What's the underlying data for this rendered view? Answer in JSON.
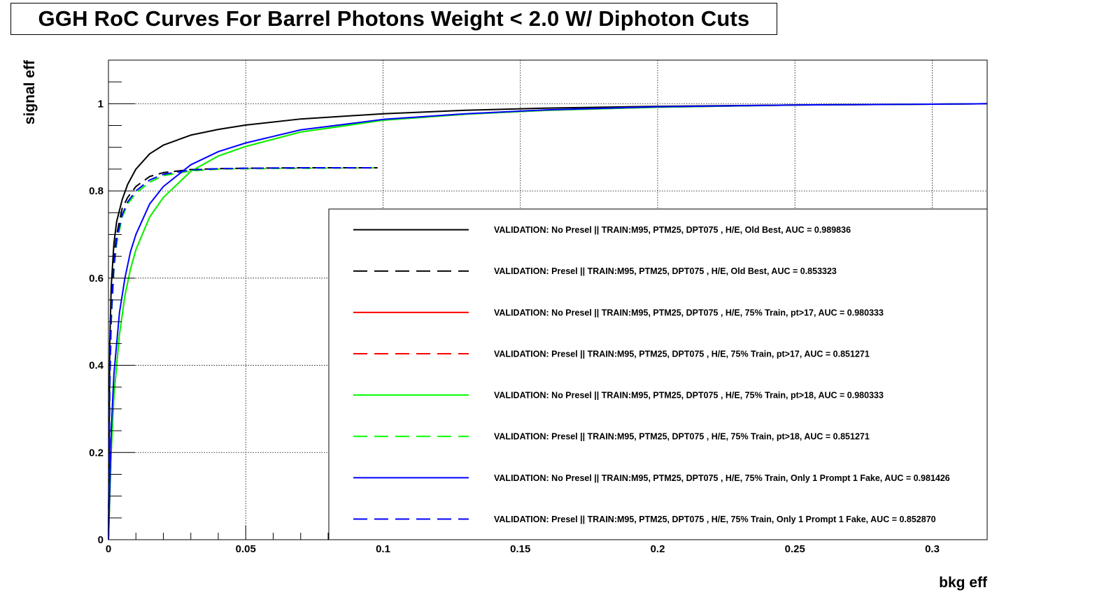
{
  "chart_data": {
    "type": "line",
    "title": "GGH RoC Curves For Barrel Photons Weight < 2.0 W/ Diphoton Cuts",
    "xlabel": "bkg eff",
    "ylabel": "signal eff",
    "xlim": [
      0,
      0.32
    ],
    "ylim": [
      0,
      1.1
    ],
    "grid": true,
    "legend_position": "bottom-right",
    "x_ticks": [
      {
        "value": 0,
        "label": "0"
      },
      {
        "value": 0.05,
        "label": "0.05"
      },
      {
        "value": 0.1,
        "label": "0.1"
      },
      {
        "value": 0.15,
        "label": "0.15"
      },
      {
        "value": 0.2,
        "label": "0.2"
      },
      {
        "value": 0.25,
        "label": "0.25"
      },
      {
        "value": 0.3,
        "label": "0.3"
      }
    ],
    "y_ticks": [
      {
        "value": 0,
        "label": "0"
      },
      {
        "value": 0.2,
        "label": "0.2"
      },
      {
        "value": 0.4,
        "label": "0.4"
      },
      {
        "value": 0.6,
        "label": "0.6"
      },
      {
        "value": 0.8,
        "label": "0.8"
      },
      {
        "value": 1,
        "label": "1"
      }
    ],
    "series": [
      {
        "name": "VALIDATION: No Presel || TRAIN:M95, PTM25, DPT075 , H/E, Old Best, AUC = 0.989836",
        "color": "#000000",
        "dashed": false,
        "x": [
          0,
          0.0005,
          0.001,
          0.002,
          0.003,
          0.005,
          0.007,
          0.01,
          0.015,
          0.02,
          0.03,
          0.04,
          0.05,
          0.07,
          0.1,
          0.13,
          0.16,
          0.2,
          0.25,
          0.3,
          0.32
        ],
        "y": [
          0,
          0.45,
          0.58,
          0.68,
          0.73,
          0.78,
          0.815,
          0.85,
          0.885,
          0.905,
          0.928,
          0.941,
          0.951,
          0.965,
          0.977,
          0.985,
          0.99,
          0.994,
          0.997,
          0.999,
          1.0
        ]
      },
      {
        "name": "VALIDATION: Presel || TRAIN:M95, PTM25, DPT075 , H/E, Old Best, AUC = 0.853323",
        "color": "#000000",
        "dashed": true,
        "x": [
          0,
          0.0005,
          0.001,
          0.002,
          0.003,
          0.005,
          0.007,
          0.01,
          0.015,
          0.02,
          0.03,
          0.04,
          0.05,
          0.07,
          0.098
        ],
        "y": [
          0,
          0.42,
          0.55,
          0.65,
          0.7,
          0.76,
          0.785,
          0.81,
          0.833,
          0.842,
          0.849,
          0.851,
          0.852,
          0.853,
          0.853
        ]
      },
      {
        "name": "VALIDATION: No Presel || TRAIN:M95, PTM25, DPT075 , H/E, 75% Train, pt>17, AUC = 0.980333",
        "color": "#ff0000",
        "dashed": false,
        "x": [
          0,
          0.001,
          0.002,
          0.004,
          0.006,
          0.008,
          0.01,
          0.015,
          0.02,
          0.03,
          0.04,
          0.05,
          0.07,
          0.1,
          0.13,
          0.16,
          0.2,
          0.25,
          0.3,
          0.32
        ],
        "y": [
          0,
          0.2,
          0.33,
          0.47,
          0.56,
          0.62,
          0.665,
          0.74,
          0.785,
          0.845,
          0.88,
          0.902,
          0.935,
          0.962,
          0.976,
          0.985,
          0.992,
          0.997,
          0.999,
          1.0
        ]
      },
      {
        "name": "VALIDATION: Presel || TRAIN:M95, PTM25, DPT075 , H/E, 75% Train, pt>17, AUC = 0.851271",
        "color": "#ff0000",
        "dashed": true,
        "x": [
          0,
          0.0005,
          0.001,
          0.002,
          0.003,
          0.005,
          0.007,
          0.01,
          0.015,
          0.02,
          0.03,
          0.04,
          0.05,
          0.07,
          0.098
        ],
        "y": [
          0,
          0.35,
          0.5,
          0.62,
          0.68,
          0.74,
          0.77,
          0.795,
          0.82,
          0.835,
          0.846,
          0.85,
          0.851,
          0.852,
          0.853
        ]
      },
      {
        "name": "VALIDATION: No Presel || TRAIN:M95, PTM25, DPT075 , H/E, 75% Train, pt>18, AUC = 0.980333",
        "color": "#00ff00",
        "dashed": false,
        "x": [
          0,
          0.001,
          0.002,
          0.004,
          0.006,
          0.008,
          0.01,
          0.015,
          0.02,
          0.03,
          0.04,
          0.05,
          0.07,
          0.1,
          0.13,
          0.16,
          0.2,
          0.25,
          0.3,
          0.32
        ],
        "y": [
          0,
          0.2,
          0.33,
          0.47,
          0.56,
          0.62,
          0.665,
          0.74,
          0.785,
          0.845,
          0.88,
          0.902,
          0.935,
          0.962,
          0.976,
          0.985,
          0.992,
          0.997,
          0.999,
          1.0
        ]
      },
      {
        "name": "VALIDATION: Presel || TRAIN:M95, PTM25, DPT075 , H/E, 75% Train, pt>18, AUC = 0.851271",
        "color": "#00ff00",
        "dashed": true,
        "x": [
          0,
          0.0005,
          0.001,
          0.002,
          0.003,
          0.005,
          0.007,
          0.01,
          0.015,
          0.02,
          0.03,
          0.04,
          0.05,
          0.07,
          0.098
        ],
        "y": [
          0,
          0.35,
          0.5,
          0.62,
          0.68,
          0.74,
          0.77,
          0.795,
          0.82,
          0.835,
          0.846,
          0.85,
          0.851,
          0.852,
          0.853
        ]
      },
      {
        "name": "VALIDATION: No Presel || TRAIN:M95, PTM25, DPT075 , H/E, 75% Train, Only 1 Prompt 1 Fake, AUC = 0.981426",
        "color": "#0000ff",
        "dashed": false,
        "x": [
          0,
          0.001,
          0.002,
          0.004,
          0.006,
          0.008,
          0.01,
          0.015,
          0.02,
          0.03,
          0.04,
          0.05,
          0.07,
          0.1,
          0.13,
          0.16,
          0.2,
          0.25,
          0.3,
          0.32
        ],
        "y": [
          0,
          0.25,
          0.38,
          0.52,
          0.6,
          0.66,
          0.7,
          0.77,
          0.81,
          0.86,
          0.89,
          0.91,
          0.94,
          0.964,
          0.977,
          0.986,
          0.993,
          0.997,
          0.999,
          1.0
        ]
      },
      {
        "name": "VALIDATION: Presel || TRAIN:M95, PTM25, DPT075 , H/E, 75% Train, Only 1 Prompt 1 Fake, AUC = 0.852870",
        "color": "#0000ff",
        "dashed": true,
        "x": [
          0,
          0.0005,
          0.001,
          0.002,
          0.003,
          0.005,
          0.007,
          0.01,
          0.015,
          0.02,
          0.03,
          0.04,
          0.05,
          0.07,
          0.098
        ],
        "y": [
          0,
          0.36,
          0.51,
          0.63,
          0.69,
          0.745,
          0.775,
          0.8,
          0.825,
          0.838,
          0.848,
          0.851,
          0.852,
          0.853,
          0.853
        ]
      }
    ]
  }
}
